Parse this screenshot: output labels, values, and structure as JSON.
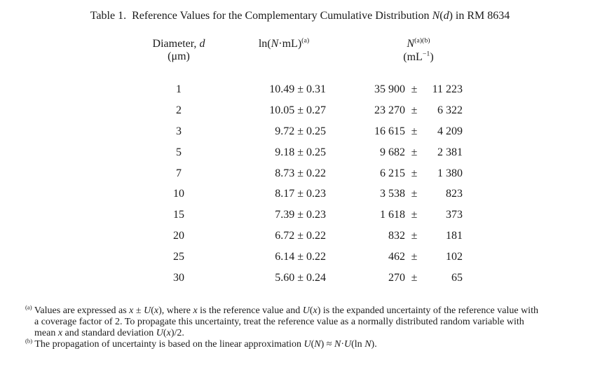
{
  "page": {
    "background": "#ffffff",
    "text_color": "#1b1b1b"
  },
  "title": {
    "segments": [
      {
        "t": "Table 1.  Reference Values for the Complementary Cumulative Distribution "
      },
      {
        "t": "N",
        "i": 1
      },
      {
        "t": "("
      },
      {
        "t": "d",
        "i": 1
      },
      {
        "t": ")"
      },
      {
        "t": " in RM 8634"
      }
    ]
  },
  "table": {
    "headers": {
      "diameter": {
        "segments": [
          {
            "t": "Diameter, "
          },
          {
            "t": "d",
            "i": 1
          }
        ],
        "unit": "(μm)"
      },
      "ln": {
        "segments": [
          {
            "t": "ln("
          },
          {
            "t": "N",
            "i": 1
          },
          {
            "t": "·mL)"
          },
          {
            "t": "(a)",
            "sup": 1
          }
        ]
      },
      "n": {
        "segments": [
          {
            "t": "N",
            "i": 1
          },
          {
            "t": "(a)(b)",
            "sup": 1
          }
        ],
        "unit_segments": [
          {
            "t": "(mL"
          },
          {
            "t": "−1",
            "sup": 1
          },
          {
            "t": ")"
          }
        ]
      }
    },
    "rows": [
      {
        "d": "1",
        "ln": "10.49 ± 0.31",
        "n": "35 900",
        "pm": "±",
        "u": "11 223"
      },
      {
        "d": "2",
        "ln": "10.05 ± 0.27",
        "n": "23 270",
        "pm": "±",
        "u": "6 322"
      },
      {
        "d": "3",
        "ln": "9.72 ± 0.25",
        "n": "16 615",
        "pm": "±",
        "u": "4 209"
      },
      {
        "d": "5",
        "ln": "9.18 ± 0.25",
        "n": "9 682",
        "pm": "±",
        "u": "2 381"
      },
      {
        "d": "7",
        "ln": "8.73 ± 0.22",
        "n": "6 215",
        "pm": "±",
        "u": "1 380"
      },
      {
        "d": "10",
        "ln": "8.17 ± 0.23",
        "n": "3 538",
        "pm": "±",
        "u": "823"
      },
      {
        "d": "15",
        "ln": "7.39 ± 0.23",
        "n": "1 618",
        "pm": "±",
        "u": "373"
      },
      {
        "d": "20",
        "ln": "6.72 ± 0.22",
        "n": "832",
        "pm": "±",
        "u": "181"
      },
      {
        "d": "25",
        "ln": "6.14 ± 0.22",
        "n": "462",
        "pm": "±",
        "u": "102"
      },
      {
        "d": "30",
        "ln": "5.60 ± 0.24",
        "n": "270",
        "pm": "±",
        "u": "65"
      }
    ]
  },
  "footnotes": {
    "a": {
      "segments": [
        {
          "t": "(a)",
          "sup": 1
        },
        {
          "t": " Values are expressed as "
        },
        {
          "t": "x",
          "i": 1
        },
        {
          "t": " ± "
        },
        {
          "t": "U",
          "i": 1
        },
        {
          "t": "("
        },
        {
          "t": "x",
          "i": 1
        },
        {
          "t": "), where "
        },
        {
          "t": "x",
          "i": 1
        },
        {
          "t": " is the reference value and "
        },
        {
          "t": "U",
          "i": 1
        },
        {
          "t": "("
        },
        {
          "t": "x",
          "i": 1
        },
        {
          "t": ") is the expanded uncertainty of the reference value with"
        },
        {
          "br": 1
        },
        {
          "t": "a coverage factor of 2. To propagate this uncertainty, treat the reference value as a normally distributed random variable with"
        },
        {
          "br": 1
        },
        {
          "t": "mean "
        },
        {
          "t": "x",
          "i": 1
        },
        {
          "t": " and standard deviation "
        },
        {
          "t": "U",
          "i": 1
        },
        {
          "t": "("
        },
        {
          "t": "x",
          "i": 1
        },
        {
          "t": ")/2."
        }
      ]
    },
    "b": {
      "segments": [
        {
          "t": "(b)",
          "sup": 1
        },
        {
          "t": " The propagation of uncertainty is based on the linear approximation "
        },
        {
          "t": "U",
          "i": 1
        },
        {
          "t": "("
        },
        {
          "t": "N",
          "i": 1
        },
        {
          "t": ") ≈ "
        },
        {
          "t": "N",
          "i": 1
        },
        {
          "t": "·"
        },
        {
          "t": "U",
          "i": 1
        },
        {
          "t": "(ln "
        },
        {
          "t": "N",
          "i": 1
        },
        {
          "t": ")."
        }
      ]
    }
  }
}
